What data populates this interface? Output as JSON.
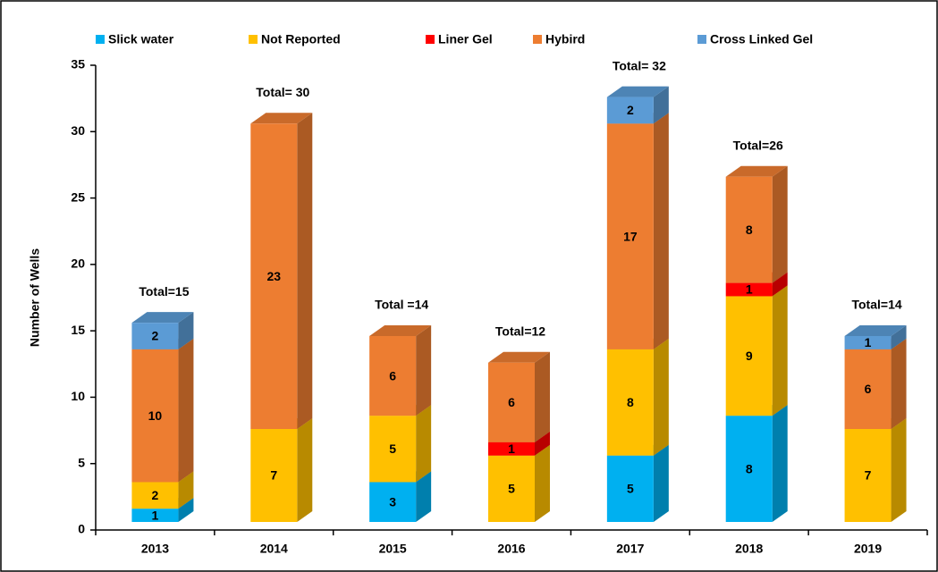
{
  "chart_data": {
    "type": "bar3d_stacked",
    "y_label": "Number of Wells",
    "categories": [
      "2013",
      "2014",
      "2015",
      "2016",
      "2017",
      "2018",
      "2019"
    ],
    "series": [
      {
        "name": "Slick water",
        "color": "#00b0f0",
        "values": [
          1,
          0,
          3,
          0,
          5,
          8,
          0
        ]
      },
      {
        "name": "Not Reported",
        "color": "#ffc000",
        "values": [
          2,
          7,
          5,
          5,
          8,
          9,
          7
        ]
      },
      {
        "name": "Liner Gel",
        "color": "#ff0000",
        "values": [
          0,
          0,
          0,
          1,
          0,
          1,
          0
        ]
      },
      {
        "name": "Hybird",
        "color": "#ed7d31",
        "values": [
          10,
          23,
          6,
          6,
          17,
          8,
          6
        ]
      },
      {
        "name": "Cross Linked Gel",
        "color": "#5b9bd5",
        "values": [
          2,
          0,
          0,
          0,
          2,
          0,
          1
        ]
      }
    ],
    "total_labels": [
      "Total=15",
      "Total= 30",
      "Total =14",
      "Total=12",
      "Total= 32",
      "Total=26",
      "Total=14"
    ],
    "ylim": [
      0,
      35
    ],
    "yticks": [
      0,
      5,
      10,
      15,
      20,
      25,
      30,
      35
    ],
    "legend": "top"
  }
}
